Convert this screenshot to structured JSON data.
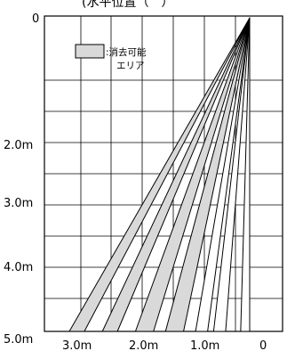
{
  "title": "(水平位置（　）",
  "legend": {
    "label_line1": ":消去可能",
    "label_line2": "エリア",
    "swatch_color": "#d9d9d9"
  },
  "y_axis": {
    "top_label": "0",
    "labels": [
      "2.0m",
      "3.0m",
      "4.0m",
      "5.0m"
    ]
  },
  "x_axis": {
    "labels": [
      "3.0m",
      "2.0m",
      "1.0m",
      "0"
    ]
  },
  "colors": {
    "erasable": "#d9d9d9",
    "empty": "#ffffff",
    "line": "#000000",
    "grid": "#000000"
  },
  "beams": [
    {
      "foot_from_m": 3.0,
      "foot_to_m": 2.75,
      "erasable": true
    },
    {
      "foot_from_m": 2.45,
      "foot_to_m": 2.2,
      "erasable": true
    },
    {
      "foot_from_m": 1.9,
      "foot_to_m": 1.6,
      "erasable": true
    },
    {
      "foot_from_m": 1.4,
      "foot_to_m": 1.1,
      "erasable": true
    },
    {
      "foot_from_m": 0.9,
      "foot_to_m": 0.7,
      "erasable": false
    },
    {
      "foot_from_m": 0.6,
      "foot_to_m": 0.4,
      "erasable": false
    },
    {
      "foot_from_m": 0.15,
      "foot_to_m": 0.0,
      "erasable": false
    }
  ]
}
